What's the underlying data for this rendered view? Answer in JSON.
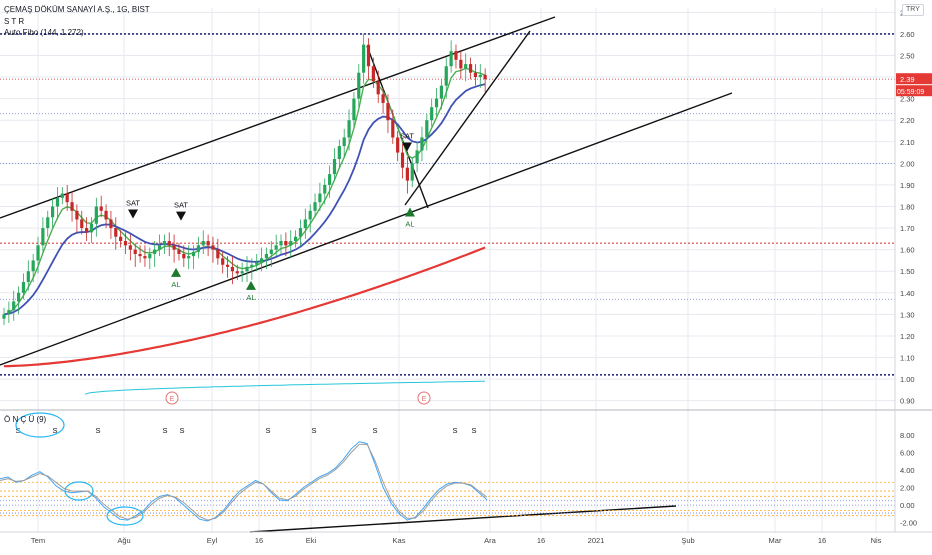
{
  "header": {
    "title": "ÇEMAŞ DÖKÜM SANAYİ A.Ş., 1G, BIST",
    "line2": "S T R",
    "line3": "Auto Fibo (144, 1.272)",
    "currency": "TRY"
  },
  "colors": {
    "grid": "#e6e9ef",
    "fib": "#2a2e7a",
    "red_fib": "#d64545",
    "blue_fib": "#6b7bd6",
    "candle_up": "#26a65b",
    "candle_down": "#c62828",
    "ema_green": "#4caf50",
    "ema_blue": "#3f51b5",
    "ema_red": "#e53935",
    "cyan": "#26c6da",
    "osc_fast": "#42a5f5",
    "osc_slow": "#9e9e9e",
    "osc_level_orange": "#ffa726"
  },
  "chart_data": [
    {
      "type": "line",
      "title": "ÇEMAŞ DÖKÜM SANAYİ A.Ş., 1G, BIST",
      "x_ticks": [
        "Tem",
        "Ağu",
        "Eyl",
        "16",
        "Eki",
        "Kas",
        "Ara",
        "16",
        "2021",
        "Şub",
        "Mar",
        "16",
        "Nis"
      ],
      "y_ticks": [
        "2.70",
        "2.60",
        "2.50",
        "2.40",
        "2.30",
        "2.20",
        "2.10",
        "2.00",
        "1.90",
        "1.80",
        "1.70",
        "1.60",
        "1.50",
        "1.40",
        "1.30",
        "1.20",
        "1.10",
        "1.00",
        "0.90"
      ],
      "ylim": [
        0.88,
        2.72
      ],
      "last_price": "2.39",
      "countdown": "05:59:09",
      "fib_levels": [
        2.6,
        2.39,
        2.23,
        2.0,
        1.63,
        1.37,
        1.02
      ],
      "candles_close_approx": [
        1.3,
        1.32,
        1.36,
        1.4,
        1.45,
        1.5,
        1.55,
        1.62,
        1.7,
        1.75,
        1.8,
        1.84,
        1.86,
        1.82,
        1.78,
        1.74,
        1.7,
        1.68,
        1.72,
        1.8,
        1.78,
        1.74,
        1.7,
        1.66,
        1.64,
        1.62,
        1.6,
        1.58,
        1.57,
        1.56,
        1.58,
        1.6,
        1.62,
        1.64,
        1.62,
        1.6,
        1.58,
        1.56,
        1.57,
        1.59,
        1.62,
        1.64,
        1.62,
        1.6,
        1.56,
        1.53,
        1.52,
        1.5,
        1.49,
        1.5,
        1.52,
        1.53,
        1.54,
        1.56,
        1.58,
        1.6,
        1.62,
        1.64,
        1.62,
        1.64,
        1.66,
        1.7,
        1.74,
        1.78,
        1.82,
        1.86,
        1.9,
        1.95,
        2.02,
        2.08,
        2.12,
        2.2,
        2.3,
        2.42,
        2.55,
        2.45,
        2.38,
        2.32,
        2.28,
        2.2,
        2.12,
        2.05,
        1.98,
        1.92,
        2.0,
        2.06,
        2.12,
        2.2,
        2.26,
        2.3,
        2.36,
        2.45,
        2.52,
        2.48,
        2.44,
        2.46,
        2.42,
        2.4,
        2.41,
        2.39
      ],
      "signals": [
        {
          "label": "SAT",
          "kind": "sell",
          "value": 1.74
        },
        {
          "label": "SAT",
          "kind": "sell",
          "value": 1.73
        },
        {
          "label": "AL",
          "kind": "buy",
          "value": 1.52
        },
        {
          "label": "AL",
          "kind": "buy",
          "value": 1.46
        },
        {
          "label": "SAT",
          "kind": "sell",
          "value": 2.05
        },
        {
          "label": "AL",
          "kind": "buy",
          "value": 1.8
        }
      ],
      "earnings_marks": [
        "E",
        "E"
      ]
    },
    {
      "type": "line",
      "title": "Ö N Ç Ü (9)",
      "y_ticks": [
        "8.00",
        "6.00",
        "4.00",
        "2.00",
        "0.00",
        "-2.00"
      ],
      "ylim": [
        -2.6,
        8.2
      ],
      "signal_marks": [
        "S",
        "S",
        "S",
        "S",
        "S",
        "S",
        "S",
        "S",
        "S",
        "S"
      ],
      "series": [
        {
          "values": [
            3.0,
            3.2,
            2.6,
            2.8,
            3.4,
            3.8,
            3.2,
            2.2,
            1.6,
            1.4,
            1.5,
            1.6,
            0.8,
            -0.2,
            -0.9,
            -1.6,
            -1.7,
            -1.2,
            -0.6,
            0.4,
            1.0,
            1.2,
            0.8,
            0.0,
            -0.8,
            -1.6,
            -1.8,
            -1.4,
            -0.6,
            0.6,
            1.6,
            2.2,
            2.8,
            2.4,
            1.4,
            0.6,
            0.5,
            1.2,
            2.0,
            2.6,
            3.2,
            3.6,
            4.2,
            5.2,
            6.4,
            7.2,
            7.0,
            4.6,
            2.0,
            0.2,
            -1.0,
            -1.7,
            -1.4,
            -0.4,
            0.8,
            1.8,
            2.4,
            2.6,
            2.5,
            2.2,
            1.4,
            0.6
          ]
        },
        {
          "values": [
            2.8,
            3.0,
            2.7,
            2.8,
            3.2,
            3.6,
            3.3,
            2.6,
            1.9,
            1.6,
            1.6,
            1.6,
            1.0,
            0.1,
            -0.6,
            -1.3,
            -1.6,
            -1.4,
            -0.8,
            0.1,
            0.8,
            1.1,
            0.9,
            0.3,
            -0.5,
            -1.3,
            -1.7,
            -1.5,
            -0.8,
            0.3,
            1.3,
            2.0,
            2.6,
            2.4,
            1.6,
            0.8,
            0.6,
            1.0,
            1.8,
            2.4,
            3.0,
            3.4,
            4.0,
            4.9,
            6.0,
            6.9,
            6.9,
            5.0,
            2.6,
            0.6,
            -0.7,
            -1.5,
            -1.5,
            -0.7,
            0.5,
            1.5,
            2.2,
            2.5,
            2.5,
            2.3,
            1.6,
            0.9
          ]
        }
      ]
    }
  ]
}
